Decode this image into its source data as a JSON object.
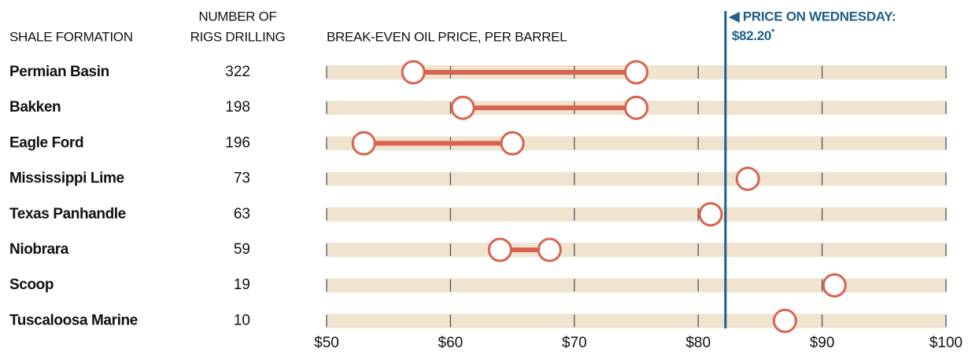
{
  "chart_data": {
    "type": "dumbbell",
    "column_headers": {
      "name": "SHALE FORMATION",
      "count": [
        "NUMBER OF",
        "RIGS DRILLING"
      ]
    },
    "x_label": "BREAK-EVEN OIL PRICE, PER BARREL",
    "categories": [
      "Permian Basin",
      "Bakken",
      "Eagle Ford",
      "Mississippi Lime",
      "Texas Panhandle",
      "Niobrara",
      "Scoop",
      "Tuscaloosa Marine"
    ],
    "rigs": [
      322,
      198,
      196,
      73,
      63,
      59,
      19,
      10
    ],
    "ranges": [
      [
        57,
        75
      ],
      [
        61,
        75
      ],
      [
        53,
        65
      ],
      [
        84
      ],
      [
        81
      ],
      [
        64,
        68
      ],
      [
        91
      ],
      [
        87
      ]
    ],
    "color": "#d9634f",
    "xlim": [
      50,
      100
    ],
    "xticks": [
      {
        "value": 50,
        "label": "$50"
      },
      {
        "value": 60,
        "label": "$60"
      },
      {
        "value": 70,
        "label": "$70"
      },
      {
        "value": 80,
        "label": "$80"
      },
      {
        "value": 90,
        "label": "$90"
      },
      {
        "value": 100,
        "label": "$100"
      }
    ],
    "reference": {
      "value": 82.2,
      "title": "PRICE ON WEDNESDAY:",
      "label": "$82.20",
      "note": "*",
      "color": "#1f5f8b"
    }
  }
}
